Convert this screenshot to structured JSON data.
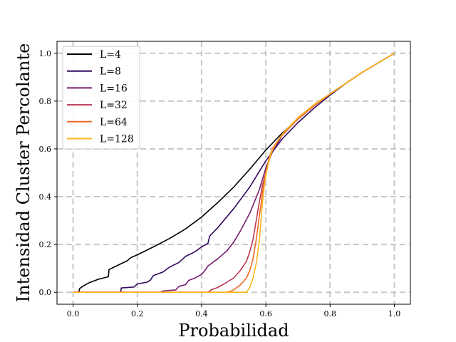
{
  "chart_data": {
    "type": "line",
    "title": "",
    "xlabel": "Probabilidad",
    "ylabel": "Intensidad Cluster Percolante",
    "xlim": [
      -0.05,
      1.05
    ],
    "ylim": [
      -0.05,
      1.05
    ],
    "xticks": [
      0.0,
      0.2,
      0.4,
      0.6,
      0.8,
      1.0
    ],
    "xtick_labels": [
      "0.0",
      "0.2",
      "0.4",
      "0.6",
      "0.8",
      "1.0"
    ],
    "yticks": [
      0.0,
      0.2,
      0.4,
      0.6,
      0.8,
      1.0
    ],
    "ytick_labels": [
      "0.0",
      "0.2",
      "0.4",
      "0.6",
      "0.8",
      "1.0"
    ],
    "grid": true,
    "grid_style": "dashed",
    "legend_position": "top-left",
    "series": [
      {
        "name": "L=4",
        "color": "#000004",
        "x": [
          0.0,
          0.018,
          0.02,
          0.03,
          0.05,
          0.08,
          0.095,
          0.11,
          0.112,
          0.15,
          0.17,
          0.175,
          0.18,
          0.2,
          0.25,
          0.3,
          0.35,
          0.4,
          0.45,
          0.5,
          0.55,
          0.6,
          0.65,
          0.7,
          0.75,
          0.8,
          0.85,
          0.9,
          0.95,
          1.0
        ],
        "y": [
          0.0,
          0.0,
          0.015,
          0.025,
          0.04,
          0.055,
          0.06,
          0.065,
          0.095,
          0.12,
          0.133,
          0.14,
          0.145,
          0.157,
          0.19,
          0.225,
          0.265,
          0.315,
          0.375,
          0.44,
          0.515,
          0.595,
          0.665,
          0.725,
          0.78,
          0.83,
          0.875,
          0.92,
          0.96,
          1.0
        ]
      },
      {
        "name": "L=8",
        "color": "#320a5e",
        "x": [
          0.0,
          0.148,
          0.15,
          0.19,
          0.2,
          0.23,
          0.24,
          0.25,
          0.28,
          0.3,
          0.33,
          0.35,
          0.38,
          0.4,
          0.42,
          0.425,
          0.45,
          0.5,
          0.55,
          0.6,
          0.65,
          0.7,
          0.75,
          0.8,
          0.85,
          0.9,
          0.95,
          1.0
        ],
        "y": [
          0.0,
          0.0,
          0.018,
          0.022,
          0.035,
          0.042,
          0.05,
          0.07,
          0.085,
          0.105,
          0.125,
          0.15,
          0.17,
          0.19,
          0.205,
          0.235,
          0.27,
          0.35,
          0.44,
          0.55,
          0.64,
          0.71,
          0.77,
          0.825,
          0.875,
          0.92,
          0.96,
          1.0
        ]
      },
      {
        "name": "L=16",
        "color": "#781c6d",
        "x": [
          0.0,
          0.27,
          0.28,
          0.3,
          0.32,
          0.33,
          0.35,
          0.36,
          0.38,
          0.4,
          0.41,
          0.42,
          0.45,
          0.48,
          0.5,
          0.52,
          0.55,
          0.58,
          0.6,
          0.62,
          0.65,
          0.7,
          0.75,
          0.8,
          0.85,
          0.9,
          0.95,
          1.0
        ],
        "y": [
          0.0,
          0.0,
          0.005,
          0.008,
          0.01,
          0.025,
          0.032,
          0.05,
          0.06,
          0.075,
          0.09,
          0.11,
          0.14,
          0.175,
          0.21,
          0.255,
          0.33,
          0.43,
          0.52,
          0.585,
          0.655,
          0.725,
          0.78,
          0.83,
          0.875,
          0.92,
          0.96,
          1.0
        ]
      },
      {
        "name": "L=32",
        "color": "#bc3754",
        "x": [
          0.0,
          0.42,
          0.43,
          0.45,
          0.47,
          0.5,
          0.52,
          0.54,
          0.55,
          0.56,
          0.57,
          0.58,
          0.59,
          0.6,
          0.61,
          0.62,
          0.65,
          0.7,
          0.75,
          0.8,
          0.85,
          0.9,
          0.95,
          1.0
        ],
        "y": [
          0.0,
          0.0,
          0.01,
          0.02,
          0.035,
          0.06,
          0.09,
          0.13,
          0.17,
          0.22,
          0.3,
          0.38,
          0.45,
          0.5,
          0.55,
          0.6,
          0.66,
          0.73,
          0.785,
          0.83,
          0.875,
          0.92,
          0.96,
          1.0
        ]
      },
      {
        "name": "L=64",
        "color": "#ed6925",
        "x": [
          0.0,
          0.48,
          0.5,
          0.52,
          0.54,
          0.55,
          0.56,
          0.57,
          0.58,
          0.59,
          0.6,
          0.61,
          0.62,
          0.64,
          0.66,
          0.7,
          0.75,
          0.8,
          0.85,
          0.9,
          0.95,
          1.0
        ],
        "y": [
          0.0,
          0.0,
          0.01,
          0.03,
          0.06,
          0.09,
          0.14,
          0.22,
          0.32,
          0.42,
          0.5,
          0.56,
          0.6,
          0.64,
          0.67,
          0.725,
          0.78,
          0.83,
          0.875,
          0.92,
          0.96,
          1.0
        ]
      },
      {
        "name": "L=128",
        "color": "#fbb61a",
        "x": [
          0.0,
          0.54,
          0.55,
          0.56,
          0.57,
          0.58,
          0.585,
          0.59,
          0.595,
          0.6,
          0.61,
          0.62,
          0.64,
          0.66,
          0.7,
          0.75,
          0.8,
          0.85,
          0.9,
          0.95,
          1.0
        ],
        "y": [
          0.0,
          0.0,
          0.02,
          0.06,
          0.12,
          0.22,
          0.3,
          0.38,
          0.44,
          0.49,
          0.55,
          0.595,
          0.64,
          0.675,
          0.73,
          0.785,
          0.83,
          0.875,
          0.92,
          0.96,
          1.0
        ]
      }
    ]
  }
}
